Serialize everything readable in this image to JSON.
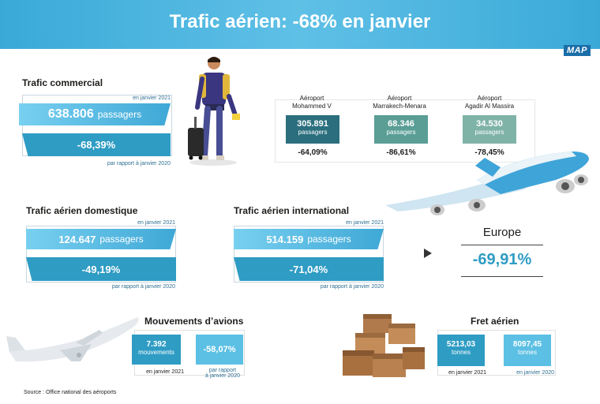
{
  "title": "Trafic aérien: -68% en janvier",
  "logo": "MAP",
  "commercial": {
    "heading": "Trafic commercial",
    "period": "en janvier 2021",
    "value": "638.806",
    "unit": "passagers",
    "change": "-68,39%",
    "compare": "par rapport à janvier 2020"
  },
  "airports": [
    {
      "line1": "Aéroport",
      "line2": "Mohammed V",
      "value": "305.891",
      "unit": "passagers",
      "change": "-64,09%",
      "color": "#2b6f7e"
    },
    {
      "line1": "Aéroport",
      "line2": "Marrakech-Menara",
      "value": "68.346",
      "unit": "passagers",
      "change": "-86,61%",
      "color": "#5a9e96"
    },
    {
      "line1": "Aéroport",
      "line2": "Agadir Al Massira",
      "value": "34.530",
      "unit": "passagers",
      "change": "-78,45%",
      "color": "#7fb3a8"
    }
  ],
  "domestic": {
    "heading": "Trafic aérien domestique",
    "period": "en janvier 2021",
    "value": "124.647",
    "unit": "passagers",
    "change": "-49,19%",
    "compare": "par rapport à janvier 2020"
  },
  "international": {
    "heading": "Trafic aérien international",
    "period": "en janvier 2021",
    "value": "514.159",
    "unit": "passagers",
    "change": "-71,04%",
    "compare": "par rapport à janvier 2020"
  },
  "europe": {
    "label": "Europe",
    "change": "-69,91%"
  },
  "movements": {
    "heading": "Mouvements d’avions",
    "value": "7.392",
    "unit": "mouvements",
    "period": "en janvier 2021",
    "change": "-58,07%",
    "compare_line1": "par rapport",
    "compare_line2": "à janvier 2020"
  },
  "freight": {
    "heading": "Fret aérien",
    "value_2021": "5213,03",
    "unit_2021": "tonnes",
    "period_2021": "en janvier 2021",
    "value_2020": "8097,45",
    "unit_2020": "tonnes",
    "period_2020": "en janvier 2020"
  },
  "source": "Source : Office national des aéroports"
}
